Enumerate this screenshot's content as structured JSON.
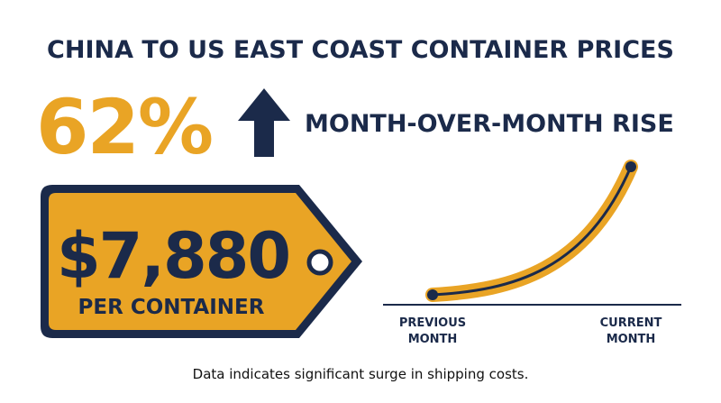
{
  "title": "CHINA TO US EAST COAST CONTAINER PRICES",
  "stat": {
    "value": "62%",
    "label": "MONTH-OVER-MONTH RISE"
  },
  "price_tag": {
    "price": "$7,880",
    "unit": "PER CONTAINER"
  },
  "curve": {
    "start_label": [
      "PREVIOUS",
      "MONTH"
    ],
    "end_label": [
      "CURRENT",
      "MONTH"
    ]
  },
  "footer": "Data indicates significant surge in shipping costs."
}
